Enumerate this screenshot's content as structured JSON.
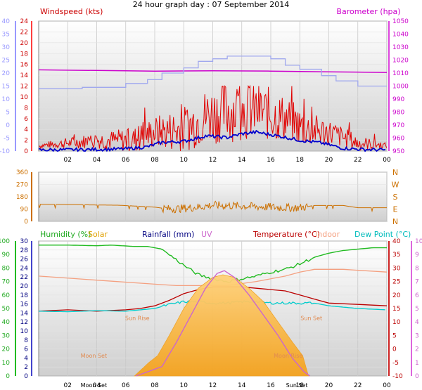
{
  "title": "24 hour graph day : 07 September 2014",
  "colors": {
    "wind": "#e00000",
    "wind_avg": "#0000cc",
    "baro": "#cc00cc",
    "baro_trace": "#a0a8ee",
    "dir": "#cc7000",
    "humidity": "#22bb22",
    "solar": "#ffbf40",
    "rain": "#000080",
    "uv": "#cc66cc",
    "temp": "#bb0000",
    "indoor": "#f4a080",
    "dew": "#00cccc",
    "left_axis": "#9999ff",
    "grid": "#c8c8c8"
  },
  "x_ticks": [
    "02",
    "04",
    "06",
    "08",
    "10",
    "12",
    "14",
    "16",
    "18",
    "20",
    "22",
    "00"
  ],
  "chart_data": [
    {
      "type": "line",
      "panel": "wind_barometer",
      "left_legend": "Windspeed (kts)",
      "right_legend": "Barometer (hpa)",
      "xlim": [
        0,
        24
      ],
      "left_ticks": [
        "24",
        "22",
        "20",
        "18",
        "16",
        "14",
        "12",
        "10",
        "8",
        "6",
        "4",
        "2",
        "0"
      ],
      "left_ylim": [
        0,
        24
      ],
      "outer_ticks": [
        "40",
        "35",
        "30",
        "25",
        "20",
        "15",
        "10",
        "5",
        "0",
        "-5",
        "-10"
      ],
      "outer_ylim": [
        -10,
        40
      ],
      "right_ticks": [
        "1050",
        "1040",
        "1030",
        "1020",
        "1010",
        "1000",
        "990",
        "980",
        "970",
        "960",
        "950"
      ],
      "right_ylim": [
        950,
        1050
      ],
      "series": [
        {
          "key": "baro",
          "axis": "right",
          "points": [
            [
              0,
              1012.5
            ],
            [
              4,
              1012
            ],
            [
              8,
              1011.5
            ],
            [
              12,
              1011.8
            ],
            [
              16,
              1011.5
            ],
            [
              20,
              1011
            ],
            [
              24,
              1010.5
            ]
          ]
        },
        {
          "key": "baro_trace",
          "axis": "outer",
          "points": [
            [
              0,
              14
            ],
            [
              3,
              14.5
            ],
            [
              6,
              16
            ],
            [
              7.5,
              17.5
            ],
            [
              8.5,
              20
            ],
            [
              10,
              22
            ],
            [
              11,
              24.5
            ],
            [
              12,
              25.5
            ],
            [
              13,
              26.5
            ],
            [
              14,
              26.5
            ],
            [
              16,
              25.5
            ],
            [
              17,
              23
            ],
            [
              18,
              21.5
            ],
            [
              19.5,
              19
            ],
            [
              20.5,
              17
            ],
            [
              22,
              15
            ],
            [
              24,
              15
            ]
          ]
        },
        {
          "key": "wind",
          "axis": "left",
          "band": [
            [
              0,
              1
            ],
            [
              4,
              2
            ],
            [
              6.5,
              2
            ],
            [
              8,
              3.5
            ],
            [
              10,
              4
            ],
            [
              11.5,
              6.5
            ],
            [
              13,
              7.5
            ],
            [
              15,
              7.5
            ],
            [
              17,
              6
            ],
            [
              18.5,
              4
            ],
            [
              20,
              3.5
            ],
            [
              22,
              1.5
            ],
            [
              24,
              1
            ]
          ],
          "amp": [
            [
              0,
              0.5
            ],
            [
              4,
              1.5
            ],
            [
              8,
              3
            ],
            [
              11,
              5
            ],
            [
              13,
              6
            ],
            [
              16,
              5
            ],
            [
              19,
              3
            ],
            [
              22,
              1.5
            ],
            [
              24,
              0.5
            ]
          ]
        },
        {
          "key": "wind_avg",
          "axis": "left",
          "points": [
            [
              0,
              0.2
            ],
            [
              4,
              0.3
            ],
            [
              6,
              0.4
            ],
            [
              7.5,
              0.8
            ],
            [
              8.5,
              1.6
            ],
            [
              10,
              1.8
            ],
            [
              11.5,
              2.8
            ],
            [
              13,
              2.5
            ],
            [
              14,
              3.2
            ],
            [
              15,
              3.5
            ],
            [
              16.5,
              2.8
            ],
            [
              18,
              2
            ],
            [
              19.5,
              1.5
            ],
            [
              21,
              0.5
            ],
            [
              22.5,
              0.3
            ],
            [
              24,
              0.2
            ]
          ]
        }
      ]
    },
    {
      "type": "line",
      "panel": "wind_direction",
      "xlim": [
        0,
        24
      ],
      "left_ticks": [
        "360",
        "270",
        "180",
        "90",
        "0"
      ],
      "ylim": [
        0,
        360
      ],
      "right_labels": [
        "N",
        "W",
        "S",
        "E",
        "N"
      ],
      "series": [
        {
          "key": "dir",
          "points": [
            [
              0,
              125
            ],
            [
              5.5,
              118
            ],
            [
              7,
              110
            ],
            [
              8,
              104
            ],
            [
              9,
              90
            ],
            [
              10,
              95
            ],
            [
              11,
              105
            ],
            [
              12,
              118
            ],
            [
              14,
              112
            ],
            [
              16,
              104
            ],
            [
              17,
              100
            ],
            [
              18,
              100
            ],
            [
              19,
              116
            ],
            [
              21,
              116
            ],
            [
              22,
              100
            ],
            [
              24,
              100
            ]
          ]
        }
      ]
    },
    {
      "type": "line",
      "panel": "humidity_temperature",
      "xlim": [
        0,
        24
      ],
      "legend": {
        "humidity": "Humidity (%)",
        "solar": "Solar",
        "rain": "Rainfall (mm)",
        "uv": "UV",
        "temp": "Temperature (°C)",
        "indoor": "Indoor",
        "dew": "Dew Point (°C)"
      },
      "humidity_ticks": [
        "100",
        "90",
        "80",
        "70",
        "60",
        "50",
        "40",
        "30",
        "20",
        "10",
        "0"
      ],
      "humidity_ylim": [
        0,
        100
      ],
      "rain_ticks": [
        "30",
        "28",
        "26",
        "24",
        "22",
        "20",
        "18",
        "16",
        "14",
        "12",
        "10",
        "8",
        "6",
        "4",
        "2",
        "0"
      ],
      "rain_ylim": [
        0,
        30
      ],
      "temp_ticks": [
        "40",
        "35",
        "30",
        "25",
        "20",
        "15",
        "10",
        "5",
        "0",
        "-5",
        "-10"
      ],
      "temp_ylim": [
        -10,
        40
      ],
      "uv_ticks": [
        "10",
        "9",
        "8",
        "7",
        "6",
        "5",
        "4",
        "3",
        "2",
        "1",
        "0"
      ],
      "uv_ylim": [
        0,
        10
      ],
      "series": [
        {
          "key": "humidity",
          "axis": "humidity",
          "points": [
            [
              0,
              97
            ],
            [
              2,
              97
            ],
            [
              4,
              96.5
            ],
            [
              5,
              97
            ],
            [
              6.5,
              96
            ],
            [
              7.5,
              96
            ],
            [
              8.5,
              94
            ],
            [
              9,
              90
            ],
            [
              9.5,
              86
            ],
            [
              10,
              82
            ],
            [
              11,
              75
            ],
            [
              12,
              72
            ],
            [
              13,
              70
            ],
            [
              14,
              72
            ],
            [
              15,
              74
            ],
            [
              16,
              77
            ],
            [
              17,
              79
            ],
            [
              18,
              83
            ],
            [
              19,
              88
            ],
            [
              20,
              91
            ],
            [
              21,
              93
            ],
            [
              22,
              94
            ],
            [
              23,
              95
            ],
            [
              24,
              95
            ]
          ]
        },
        {
          "key": "indoor",
          "axis": "temp",
          "points": [
            [
              0,
              27
            ],
            [
              4,
              25.5
            ],
            [
              8,
              24
            ],
            [
              9.5,
              23.5
            ],
            [
              10,
              23.5
            ],
            [
              13,
              23.5
            ],
            [
              15,
              25
            ],
            [
              17,
              27
            ],
            [
              18,
              28.5
            ],
            [
              19,
              29.5
            ],
            [
              21,
              29.5
            ],
            [
              24,
              28.5
            ]
          ]
        },
        {
          "key": "temp",
          "axis": "temp",
          "points": [
            [
              0,
              14
            ],
            [
              2,
              14.5
            ],
            [
              4,
              14
            ],
            [
              6,
              14.5
            ],
            [
              7,
              15
            ],
            [
              8,
              16
            ],
            [
              9,
              18
            ],
            [
              10,
              20.5
            ],
            [
              11,
              22
            ],
            [
              12,
              23
            ],
            [
              13,
              23
            ],
            [
              14,
              23
            ],
            [
              15,
              22.5
            ],
            [
              16,
              22
            ],
            [
              17,
              21.5
            ],
            [
              18,
              20
            ],
            [
              19,
              18.5
            ],
            [
              20,
              17
            ],
            [
              22,
              16.5
            ],
            [
              24,
              16
            ]
          ]
        },
        {
          "key": "dew",
          "axis": "temp",
          "points": [
            [
              0,
              14
            ],
            [
              2,
              13.8
            ],
            [
              4,
              14.2
            ],
            [
              6,
              14
            ],
            [
              7,
              14.5
            ],
            [
              8,
              15
            ],
            [
              9,
              16.5
            ],
            [
              10,
              17.5
            ],
            [
              11,
              17.5
            ],
            [
              12,
              17
            ],
            [
              13,
              17
            ],
            [
              14,
              17.5
            ],
            [
              15,
              17.5
            ],
            [
              16,
              17
            ],
            [
              17,
              17
            ],
            [
              18,
              17
            ],
            [
              19,
              17
            ],
            [
              20,
              16
            ],
            [
              22,
              15
            ],
            [
              24,
              14.5
            ]
          ]
        },
        {
          "key": "solar",
          "axis": "uv",
          "points": [
            [
              6.6,
              0
            ],
            [
              7.6,
              1
            ],
            [
              8.2,
              1.5
            ],
            [
              9,
              3
            ],
            [
              10,
              5
            ],
            [
              11,
              6.5
            ],
            [
              12,
              7.3
            ],
            [
              12.7,
              7.5
            ],
            [
              13.5,
              7.3
            ],
            [
              14.5,
              6.5
            ],
            [
              15.5,
              5.5
            ],
            [
              16.5,
              4
            ],
            [
              17.5,
              2.5
            ],
            [
              18.2,
              1.5
            ],
            [
              18.6,
              0
            ]
          ]
        },
        {
          "key": "uv",
          "axis": "uv",
          "points": [
            [
              6.7,
              0
            ],
            [
              7.5,
              0.3
            ],
            [
              8.5,
              0.7
            ],
            [
              9.5,
              2.5
            ],
            [
              10.5,
              4.5
            ],
            [
              11.5,
              6.5
            ],
            [
              12.3,
              7.6
            ],
            [
              12.8,
              7.8
            ],
            [
              13.5,
              7.3
            ],
            [
              14.5,
              6
            ],
            [
              15.5,
              4.5
            ],
            [
              16.5,
              3
            ],
            [
              17.5,
              1.3
            ],
            [
              18.3,
              0.3
            ],
            [
              18.7,
              0
            ]
          ]
        }
      ],
      "annotations": [
        {
          "text": "Sun Rise",
          "x": 6.8,
          "value": 4.3
        },
        {
          "text": "Moon Set",
          "x": 3.8,
          "value": 1.5
        },
        {
          "text": "Sun Set",
          "x": 18.8,
          "value": 4.3
        },
        {
          "text": "Moon Rise",
          "x": 17.2,
          "value": 1.5
        }
      ],
      "x_marker_labels": [
        {
          "text": "Moon Set",
          "x": 3.8
        },
        {
          "text": "Sun Set",
          "x": 17.8
        }
      ]
    }
  ]
}
